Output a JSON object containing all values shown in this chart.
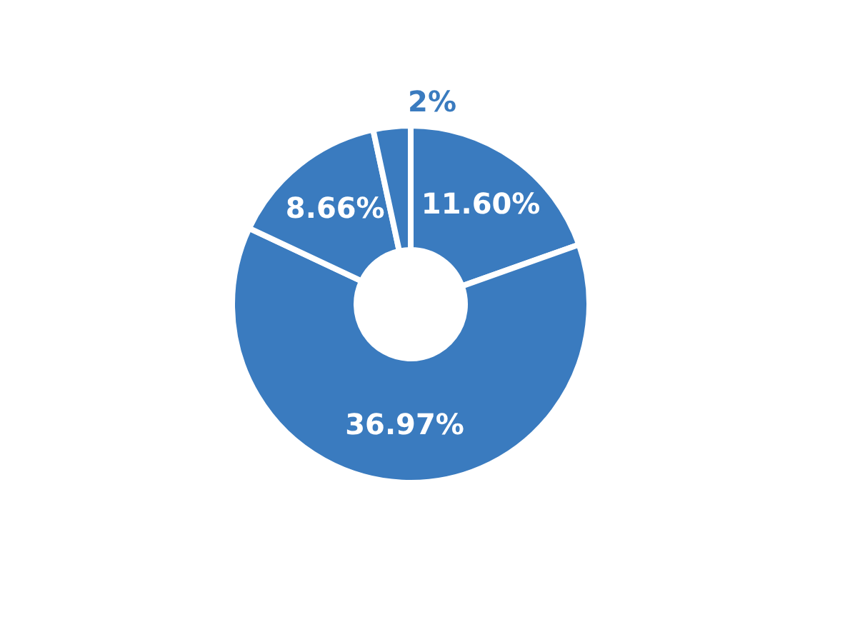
{
  "chart_data": {
    "type": "donut",
    "categories": [
      null,
      null,
      null,
      null
    ],
    "values": [
      11.6,
      36.97,
      8.66,
      2
    ],
    "value_labels": [
      "11.60%",
      "36.97%",
      "8.66%",
      "2%"
    ],
    "colors": [
      "#3a7bbf",
      "#3a7bbf",
      "#3a7bbf",
      "#3a7bbf"
    ],
    "legend": false
  }
}
